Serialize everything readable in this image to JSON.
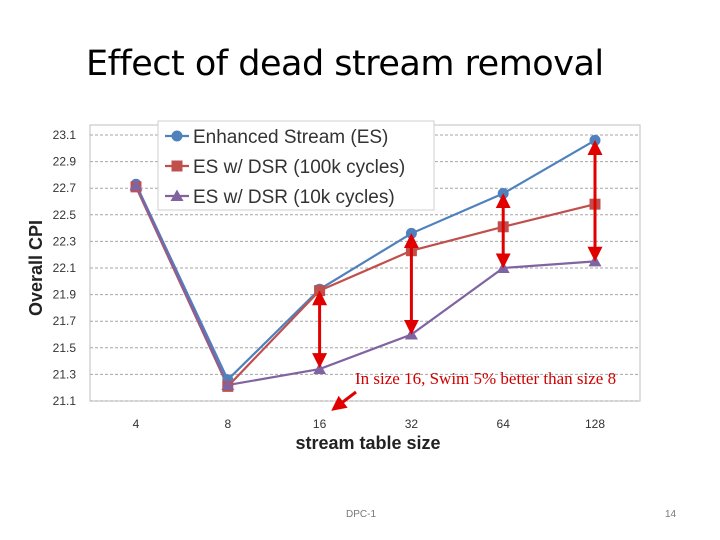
{
  "slide": {
    "title": "Effect of dead stream removal",
    "annotation": "In size 16, Swim 5% better than size 8",
    "footer_left": "DPC-1",
    "footer_right": "14"
  },
  "chart_data": {
    "type": "line",
    "title": "",
    "xlabel": "stream table size",
    "ylabel": "Overall CPI",
    "categories": [
      "4",
      "8",
      "16",
      "32",
      "64",
      "128"
    ],
    "ylim": [
      21.1,
      23.1
    ],
    "yticks": [
      "21.1",
      "21.3",
      "21.5",
      "21.7",
      "21.9",
      "22.1",
      "22.3",
      "22.5",
      "22.7",
      "22.9",
      "23.1"
    ],
    "grid": true,
    "legend_position": "top-left",
    "series": [
      {
        "name": "Enhanced Stream (ES)",
        "marker": "circle",
        "color": "#4f81bd",
        "values": [
          22.73,
          21.26,
          21.94,
          22.36,
          22.66,
          23.06
        ]
      },
      {
        "name": "ES w/ DSR (100k cycles)",
        "marker": "square",
        "color": "#c0504d",
        "values": [
          22.71,
          21.21,
          21.93,
          22.23,
          22.41,
          22.58
        ]
      },
      {
        "name": "ES w/ DSR (10k cycles)",
        "marker": "triangle",
        "color": "#8064a2",
        "values": [
          22.72,
          21.22,
          21.34,
          21.6,
          22.1,
          22.15
        ]
      }
    ],
    "annotation_arrows": [
      {
        "category": "16",
        "from": 21.91,
        "to": 21.37
      },
      {
        "category": "32",
        "from": 22.34,
        "to": 21.62
      },
      {
        "category": "64",
        "from": 22.64,
        "to": 22.12
      },
      {
        "category": "128",
        "from": 23.04,
        "to": 22.17
      }
    ],
    "pointer_arrow": {
      "category": "16",
      "label": "In size 16, Swim 5% better than size 8"
    }
  }
}
